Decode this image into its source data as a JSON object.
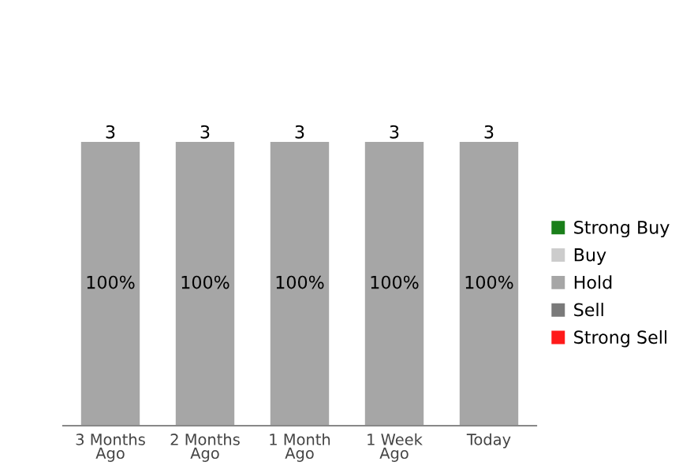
{
  "chart_data": {
    "type": "bar",
    "stacked": true,
    "legend": "right",
    "categories": [
      "3 Months\nAgo",
      "2 Months\nAgo",
      "1 Month\nAgo",
      "1 Week\nAgo",
      "Today"
    ],
    "series": [
      {
        "name": "Strong Buy",
        "color": "#1a7f1a",
        "values": [
          null,
          null,
          null,
          null,
          null
        ]
      },
      {
        "name": "Buy",
        "color": "#cccccc",
        "values": [
          null,
          null,
          null,
          null,
          null
        ]
      },
      {
        "name": "Hold",
        "color": "#a6a6a6",
        "values": [
          100,
          100,
          100,
          100,
          100
        ],
        "value_labels": [
          "100%",
          "100%",
          "100%",
          "100%",
          "100%"
        ]
      },
      {
        "name": "Sell",
        "color": "#7a7a7a",
        "values": [
          null,
          null,
          null,
          null,
          null
        ]
      },
      {
        "name": "Strong Sell",
        "color": "#ff1a1a",
        "values": [
          null,
          null,
          null,
          null,
          null
        ]
      }
    ],
    "annotations": [
      {
        "text": "3",
        "x": "3 Months\nAgo",
        "y": 100
      },
      {
        "text": "3",
        "x": "2 Months\nAgo",
        "y": 100
      },
      {
        "text": "3",
        "x": "1 Month\nAgo",
        "y": 100
      },
      {
        "text": "3",
        "x": "1 Week\nAgo",
        "y": 100
      },
      {
        "text": "3",
        "x": "Today",
        "y": 100
      }
    ]
  }
}
